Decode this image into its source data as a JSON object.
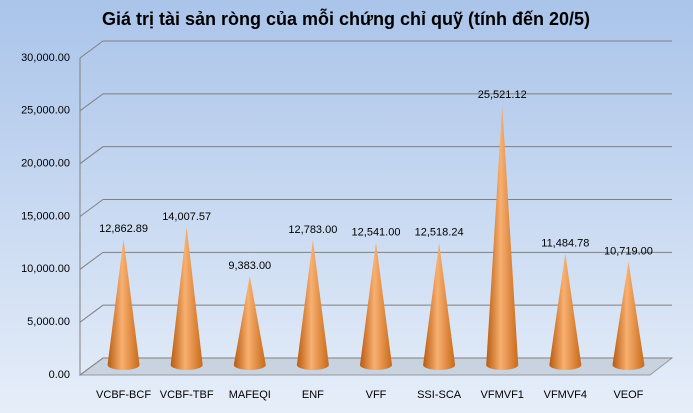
{
  "chart_data": {
    "type": "cone",
    "title": "Giá trị tài sản ròng của mỗi chứng chỉ quỹ (tính đến 20/5)",
    "categories": [
      "VCBF-BCF",
      "VCBF-TBF",
      "MAFEQI",
      "ENF",
      "VFF",
      "SSI-SCA",
      "VFMVF1",
      "VFMVF4",
      "VEOF"
    ],
    "values": [
      12862.89,
      14007.57,
      9383,
      12783,
      12541,
      12518.24,
      25521.12,
      11484.78,
      10719
    ],
    "value_labels": [
      "12,862.89",
      "14,007.57",
      "9,383.00",
      "12,783.00",
      "12,541.00",
      "12,518.24",
      "25,521.12",
      "11,484.78",
      "10,719.00"
    ],
    "color": "#f08a30",
    "ylim": [
      0,
      30000
    ],
    "yticks": [
      {
        "value": 0,
        "label": "0.00"
      },
      {
        "value": 5000,
        "label": "5,000.00"
      },
      {
        "value": 10000,
        "label": "10,000.00"
      },
      {
        "value": 15000,
        "label": "15,000.00"
      },
      {
        "value": 20000,
        "label": "20,000.00"
      },
      {
        "value": 25000,
        "label": "25,000.00"
      },
      {
        "value": 30000,
        "label": "30,000.00"
      }
    ],
    "grid": true
  }
}
